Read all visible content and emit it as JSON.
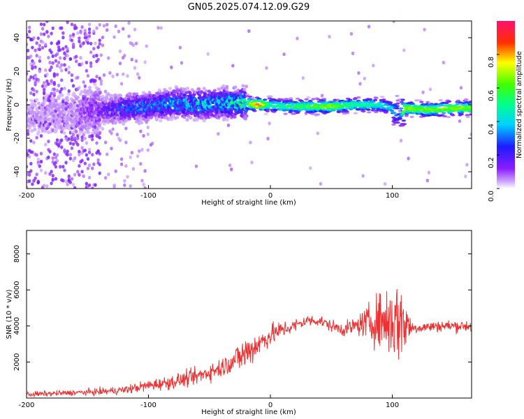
{
  "title": "GN05.2025.074.12.09.G29",
  "chart_data": [
    {
      "type": "heatmap",
      "xlabel": "Height of straight line (km)",
      "ylabel": "Frequency (Hz)",
      "xlim": [
        -200,
        165
      ],
      "ylim": [
        -50,
        50
      ],
      "xticks": [
        -200,
        -100,
        0,
        100
      ],
      "yticks": [
        -40,
        -20,
        0,
        20,
        40
      ],
      "grid": false,
      "colorbar": {
        "label": "Normalized spectral amplitude",
        "range": [
          0,
          1
        ],
        "ticks": [
          0.0,
          0.2,
          0.4,
          0.6,
          0.8
        ],
        "colormap": "hsv-reversed (white, purple, blue, cyan, green, yellow, red, pink)"
      },
      "ridge": {
        "x": [
          -200,
          -180,
          -160,
          -140,
          -120,
          -100,
          -80,
          -60,
          -40,
          -20,
          -10,
          0,
          10,
          30,
          50,
          70,
          90,
          100,
          106,
          110,
          130,
          150,
          165
        ],
        "center_freq": [
          -8,
          -5,
          -5,
          -3,
          -2,
          -1,
          1,
          0,
          1,
          1,
          0,
          0,
          -1,
          -1,
          -1,
          0,
          0,
          -2,
          -6,
          -2,
          -3,
          -2,
          -2
        ],
        "peak_amplitude": [
          0.05,
          0.06,
          0.07,
          0.15,
          0.28,
          0.34,
          0.38,
          0.4,
          0.42,
          0.55,
          0.95,
          0.52,
          0.55,
          0.62,
          0.7,
          0.55,
          0.5,
          0.42,
          0.25,
          0.7,
          0.68,
          0.72,
          0.7
        ]
      }
    },
    {
      "type": "line",
      "xlabel": "Height of straight line (km)",
      "ylabel": "SNR (10 * v/v)",
      "xlim": [
        -200,
        165
      ],
      "ylim": [
        0,
        9300
      ],
      "xticks": [
        -200,
        -100,
        0,
        100
      ],
      "yticks": [
        2000,
        4000,
        6000,
        8000
      ],
      "grid": false,
      "color": "#f03030",
      "series": [
        {
          "x": [
            -200,
            -180,
            -160,
            -140,
            -120,
            -100,
            -80,
            -60,
            -40,
            -30,
            -20,
            -10,
            0,
            10,
            20,
            30,
            40,
            50,
            60,
            70,
            80,
            90,
            100,
            110,
            115,
            120,
            140,
            165
          ],
          "mean": [
            200,
            250,
            300,
            350,
            450,
            700,
            900,
            1200,
            1700,
            2100,
            2500,
            3000,
            3500,
            3800,
            4000,
            4300,
            4300,
            4000,
            3800,
            4000,
            4200,
            4300,
            4300,
            4300,
            3900,
            3900,
            4000,
            4000
          ],
          "noise": [
            200,
            200,
            200,
            250,
            300,
            400,
            500,
            600,
            700,
            800,
            1400,
            900,
            800,
            600,
            500,
            400,
            400,
            400,
            500,
            600,
            1200,
            2000,
            3000,
            2800,
            600,
            400,
            400,
            450
          ]
        }
      ]
    }
  ]
}
